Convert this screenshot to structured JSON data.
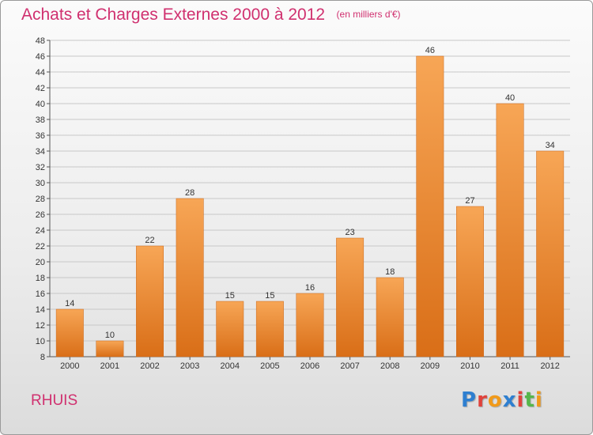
{
  "header": {
    "title": "Achats et Charges Externes 2000 à 2012",
    "subtitle": "(en milliers d'€)"
  },
  "footer": {
    "commune": "RHUIS",
    "logo_letters": [
      {
        "char": "P",
        "color": "#2e7fd0"
      },
      {
        "char": "r",
        "color": "#e0433c"
      },
      {
        "char": "o",
        "color": "#f19a1a"
      },
      {
        "char": "x",
        "color": "#2e7fd0"
      },
      {
        "char": "i",
        "color": "#e0433c"
      },
      {
        "char": "t",
        "color": "#56b64a"
      },
      {
        "char": "i",
        "color": "#f19a1a"
      }
    ]
  },
  "colors": {
    "bar_top": "#f7a656",
    "bar_bottom": "#d96e17",
    "grid": "#c8c8c8",
    "axis": "#555555"
  },
  "chart_data": {
    "type": "bar",
    "title": "Achats et Charges Externes 2000 à 2012",
    "subtitle": "(en milliers d'€)",
    "xlabel": "",
    "ylabel": "",
    "categories": [
      "2000",
      "2001",
      "2002",
      "2003",
      "2004",
      "2005",
      "2006",
      "2007",
      "2008",
      "2009",
      "2010",
      "2011",
      "2012"
    ],
    "values": [
      14,
      10,
      22,
      28,
      15,
      15,
      16,
      23,
      18,
      46,
      27,
      40,
      34
    ],
    "ylim": [
      8,
      48
    ],
    "ytick_step": 2,
    "grid": true,
    "legend": "none"
  }
}
